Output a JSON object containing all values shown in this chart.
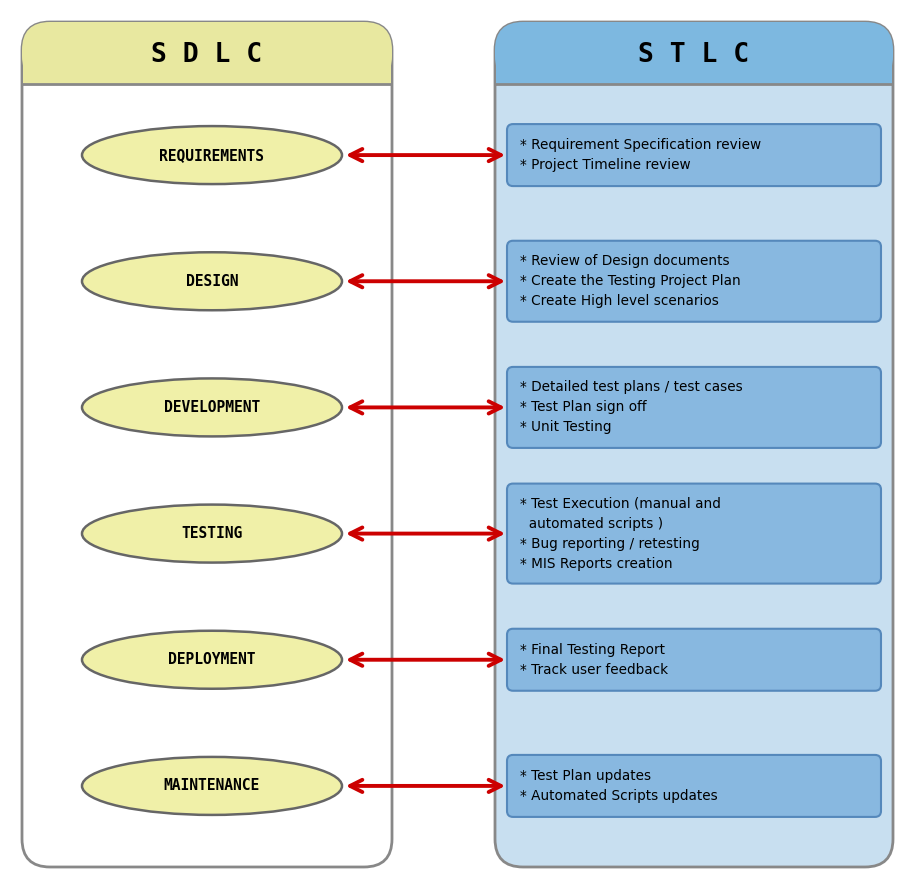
{
  "title_left": "S D L C",
  "title_right": "S T L C",
  "left_body_bg": "#ffffff",
  "left_header_bg": "#e8e8a0",
  "left_border": "#888888",
  "right_body_bg": "#c8dff0",
  "right_header_bg": "#7db8e0",
  "right_border": "#888888",
  "ellipse_fill": "#f0f0a8",
  "ellipse_edge": "#666666",
  "box_fill": "#88b8e0",
  "box_edge": "#5588bb",
  "arrow_color": "#cc0000",
  "phases": [
    "REQUIREMENTS",
    "DESIGN",
    "DEVELOPMENT",
    "TESTING",
    "DEPLOYMENT",
    "MAINTENANCE"
  ],
  "descriptions": [
    "* Requirement Specification review\n* Project Timeline review",
    "* Review of Design documents\n* Create the Testing Project Plan\n* Create High level scenarios",
    "* Detailed test plans / test cases\n* Test Plan sign off\n* Unit Testing",
    "* Test Execution (manual and\n  automated scripts )\n* Bug reporting / retesting\n* MIS Reports creation",
    "* Final Testing Report\n* Track user feedback",
    "* Test Plan updates\n* Automated Scripts updates"
  ],
  "fig_width": 9.12,
  "fig_height": 8.89,
  "dpi": 100
}
